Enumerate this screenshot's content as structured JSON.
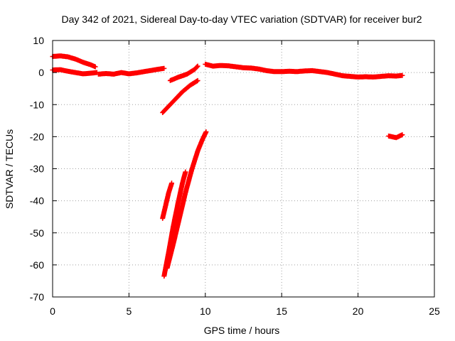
{
  "chart_data": {
    "type": "scatter",
    "title": "Day 342 of 2021, Sidereal Day-to-day VTEC variation (SDTVAR) for receiver bur2",
    "xlabel": "GPS time / hours",
    "ylabel": "SDTVAR / TECUs",
    "xlim": [
      0,
      25
    ],
    "ylim": [
      -70,
      10
    ],
    "xticks": [
      "0",
      "5",
      "10",
      "15",
      "20",
      "25"
    ],
    "yticks": [
      "10",
      "0",
      "-10",
      "-20",
      "-30",
      "-40",
      "-50",
      "-60",
      "-70"
    ],
    "grid": true,
    "marker_color": "#ff0000",
    "series": [
      {
        "name": "arc-upper-start",
        "points": [
          [
            0.0,
            5.0
          ],
          [
            0.5,
            5.2
          ],
          [
            1.0,
            4.9
          ],
          [
            1.5,
            4.2
          ],
          [
            2.0,
            3.2
          ],
          [
            2.5,
            2.4
          ],
          [
            2.8,
            1.8
          ]
        ]
      },
      {
        "name": "arc-baseline-start",
        "points": [
          [
            0.0,
            0.8
          ],
          [
            0.5,
            0.9
          ],
          [
            1.0,
            0.4
          ],
          [
            1.5,
            0.0
          ],
          [
            2.0,
            -0.4
          ],
          [
            2.5,
            -0.2
          ],
          [
            2.9,
            0.0
          ]
        ]
      },
      {
        "name": "arc-early-mid",
        "points": [
          [
            3.0,
            -0.5
          ],
          [
            3.5,
            -0.3
          ],
          [
            4.0,
            -0.5
          ],
          [
            4.5,
            0.0
          ],
          [
            5.0,
            -0.4
          ],
          [
            5.5,
            -0.1
          ],
          [
            6.0,
            0.3
          ],
          [
            6.5,
            0.7
          ],
          [
            7.0,
            1.1
          ],
          [
            7.3,
            1.3
          ]
        ]
      },
      {
        "name": "arc-dip-a",
        "points": [
          [
            7.2,
            -12.5
          ],
          [
            7.6,
            -10.5
          ],
          [
            8.0,
            -8.5
          ],
          [
            8.5,
            -6.0
          ],
          [
            9.0,
            -4.0
          ],
          [
            9.5,
            -2.5
          ]
        ]
      },
      {
        "name": "arc-dip-b",
        "points": [
          [
            7.7,
            -2.5
          ],
          [
            8.2,
            -1.5
          ],
          [
            8.8,
            -0.5
          ],
          [
            9.3,
            1.0
          ],
          [
            9.5,
            2.0
          ]
        ]
      },
      {
        "name": "arc-deep-1",
        "points": [
          [
            7.2,
            -45.5
          ],
          [
            7.4,
            -41.5
          ],
          [
            7.6,
            -37.5
          ],
          [
            7.8,
            -34.5
          ]
        ]
      },
      {
        "name": "arc-deep-2",
        "points": [
          [
            7.3,
            -63.5
          ],
          [
            7.6,
            -56.0
          ],
          [
            7.9,
            -48.0
          ],
          [
            8.2,
            -41.0
          ],
          [
            8.5,
            -34.5
          ],
          [
            8.7,
            -31.0
          ]
        ]
      },
      {
        "name": "arc-deep-3",
        "points": [
          [
            7.5,
            -61.0
          ],
          [
            7.9,
            -53.5
          ],
          [
            8.3,
            -45.5
          ],
          [
            8.7,
            -37.5
          ],
          [
            9.1,
            -30.5
          ],
          [
            9.5,
            -24.5
          ],
          [
            9.8,
            -21.0
          ],
          [
            10.05,
            -18.5
          ]
        ]
      },
      {
        "name": "arc-late-mid",
        "points": [
          [
            10.0,
            2.6
          ],
          [
            10.5,
            2.0
          ],
          [
            11.0,
            2.2
          ],
          [
            11.5,
            2.1
          ],
          [
            12.0,
            1.8
          ],
          [
            12.5,
            1.5
          ],
          [
            13.0,
            1.4
          ],
          [
            13.5,
            1.1
          ],
          [
            14.0,
            0.6
          ],
          [
            14.5,
            0.3
          ],
          [
            15.0,
            0.3
          ],
          [
            15.5,
            0.4
          ],
          [
            16.0,
            0.3
          ],
          [
            16.5,
            0.5
          ],
          [
            17.0,
            0.6
          ],
          [
            17.5,
            0.3
          ],
          [
            18.0,
            0.0
          ],
          [
            18.5,
            -0.5
          ],
          [
            19.0,
            -1.0
          ],
          [
            19.5,
            -1.2
          ],
          [
            20.0,
            -1.4
          ],
          [
            20.5,
            -1.3
          ],
          [
            21.0,
            -1.4
          ],
          [
            21.5,
            -1.2
          ],
          [
            22.0,
            -1.0
          ],
          [
            22.5,
            -1.1
          ],
          [
            22.9,
            -0.9
          ]
        ]
      },
      {
        "name": "arc-late-short",
        "points": [
          [
            22.0,
            -19.8
          ],
          [
            22.5,
            -20.3
          ],
          [
            22.9,
            -19.4
          ]
        ]
      }
    ]
  }
}
